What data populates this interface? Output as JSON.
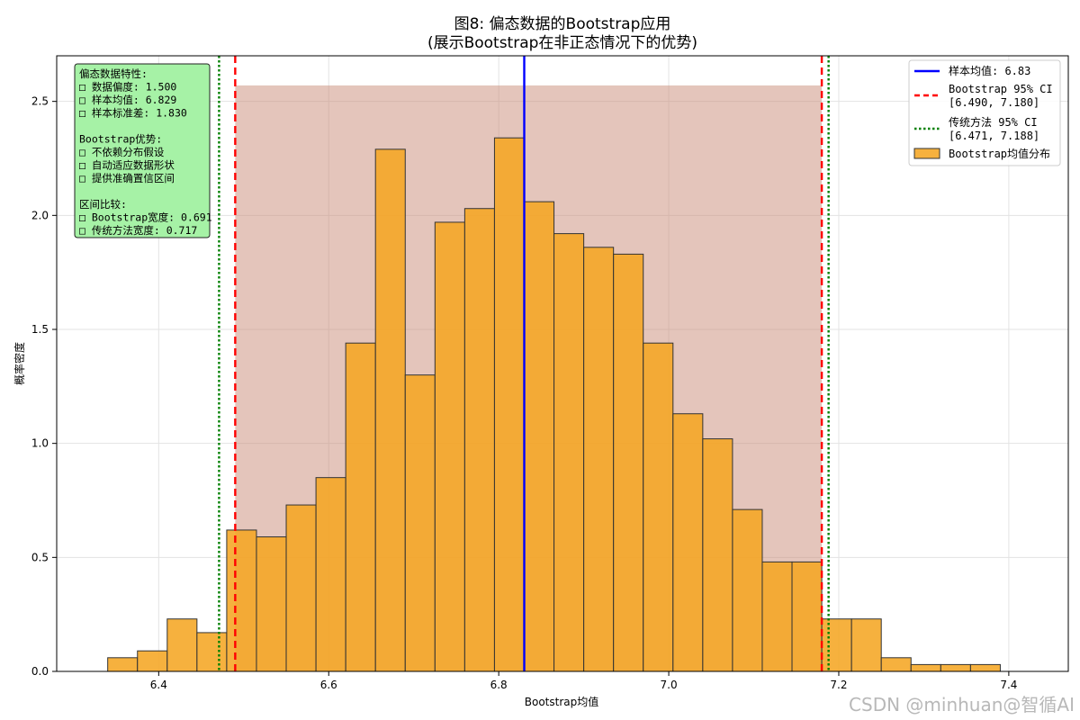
{
  "chart_data": {
    "type": "bar",
    "title": "图8: 偏态数据的Bootstrap应用",
    "subtitle": "(展示Bootstrap在非正态情况下的优势)",
    "xlabel": "Bootstrap均值",
    "ylabel": "概率密度",
    "xlim": [
      6.28,
      7.47
    ],
    "ylim": [
      0,
      2.7
    ],
    "xticks": [
      "6.4",
      "6.6",
      "6.8",
      "7.0",
      "7.2",
      "7.4"
    ],
    "yticks": [
      "0.0",
      "0.5",
      "1.0",
      "1.5",
      "2.0",
      "2.5"
    ],
    "grid": true,
    "legend_position": "top-right",
    "histogram": {
      "name": "Bootstrap均值分布",
      "bin_edges": [
        6.34,
        6.375,
        6.41,
        6.445,
        6.48,
        6.515,
        6.55,
        6.585,
        6.62,
        6.655,
        6.69,
        6.725,
        6.76,
        6.795,
        6.83,
        6.865,
        6.9,
        6.935,
        6.97,
        7.005,
        7.04,
        7.075,
        7.11,
        7.145,
        7.18,
        7.215,
        7.25,
        7.285,
        7.32,
        7.355,
        7.39
      ],
      "densities": [
        0.06,
        0.09,
        0.23,
        0.17,
        0.62,
        0.59,
        0.73,
        0.85,
        1.44,
        2.29,
        1.3,
        1.97,
        2.03,
        2.34,
        2.06,
        1.92,
        1.86,
        1.83,
        1.44,
        1.13,
        1.02,
        0.71,
        0.48,
        0.48,
        0.23,
        0.23,
        0.06,
        0.03,
        0.03,
        0.03
      ]
    },
    "ci_shade": {
      "x_from": 6.49,
      "x_to": 7.18,
      "height": 2.57
    },
    "lines": [
      {
        "label": "样本均值: 6.83",
        "x": 6.83,
        "color": "#0000ff",
        "style": "solid"
      },
      {
        "label": "Bootstrap 95% CI",
        "label2": "[6.490, 7.180]",
        "x": [
          6.49,
          7.18
        ],
        "color": "#ff0000",
        "style": "dashed"
      },
      {
        "label": "传统方法 95% CI",
        "label2": "[6.471, 7.188]",
        "x": [
          6.471,
          7.188
        ],
        "color": "#008000",
        "style": "dotted"
      }
    ],
    "colors": {
      "bar": "#f5a623",
      "bar_edge": "#333333",
      "shade": "#c98b77",
      "info_bg": "#a6f2a6"
    },
    "info_box": [
      "偏态数据特性:",
      "□ 数据偏度: 1.500",
      "□ 样本均值: 6.829",
      "□ 样本标准差: 1.830",
      "",
      "Bootstrap优势:",
      "□ 不依赖分布假设",
      "□ 自动适应数据形状",
      "□ 提供准确置信区间",
      "",
      "区间比较:",
      "□ Bootstrap宽度: 0.691",
      "□ 传统方法宽度: 0.717"
    ]
  },
  "watermark": "CSDN @minhuan@智循AI"
}
